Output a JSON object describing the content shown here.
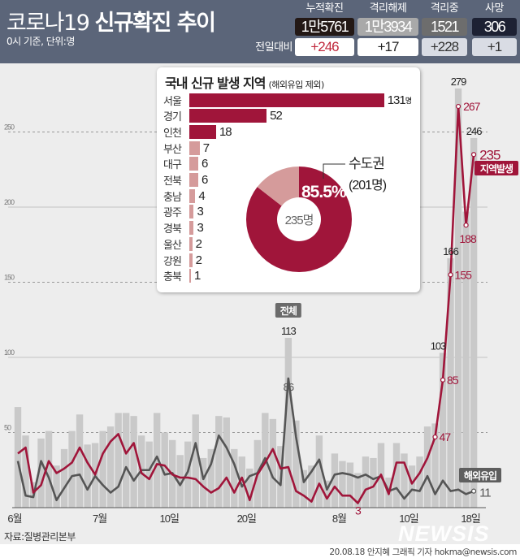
{
  "header": {
    "title_regular": "코로나19",
    "title_bold": "신규확진 추이",
    "subtitle": "0시 기준, 단위:명",
    "compare_label": "전일대비",
    "stats": [
      {
        "label": "누적확진",
        "value": "1만5761",
        "change": "+246",
        "bg": "#231815",
        "change_color": "#c0283c",
        "change_bg": "#ffffff"
      },
      {
        "label": "격리해제",
        "value": "1만3934",
        "change": "+17",
        "bg": "#a9a9a9",
        "change_color": "#222222",
        "change_bg": "#ffffff"
      },
      {
        "label": "격리중",
        "value": "1521",
        "change": "+228",
        "bg": "#6d6d6d",
        "change_color": "#333333",
        "change_bg": "#d9dce4"
      },
      {
        "label": "사망",
        "value": "306",
        "change": "+1",
        "bg": "#1d2133",
        "change_color": "#333333",
        "change_bg": "#d9dce4"
      }
    ]
  },
  "inset": {
    "title": "국내 신규 발생 지역",
    "note": "(해외유입 제외)",
    "unit": "명",
    "regions": [
      {
        "name": "서울",
        "value": 131,
        "metro": true
      },
      {
        "name": "경기",
        "value": 52,
        "metro": true
      },
      {
        "name": "인천",
        "value": 18,
        "metro": true
      },
      {
        "name": "부산",
        "value": 7,
        "metro": false
      },
      {
        "name": "대구",
        "value": 6,
        "metro": false
      },
      {
        "name": "전북",
        "value": 6,
        "metro": false
      },
      {
        "name": "충남",
        "value": 4,
        "metro": false
      },
      {
        "name": "광주",
        "value": 3,
        "metro": false
      },
      {
        "name": "경북",
        "value": 3,
        "metro": false
      },
      {
        "name": "울산",
        "value": 2,
        "metro": false
      },
      {
        "name": "강원",
        "value": 2,
        "metro": false
      },
      {
        "name": "충북",
        "value": 1,
        "metro": false
      }
    ],
    "donut": {
      "percent": 85.5,
      "percent_label": "85.5%",
      "group_label": "수도권",
      "group_count": "(201명)",
      "center_label": "235명",
      "colors": {
        "metro": "#a0153a",
        "other": "#d59b9b"
      }
    }
  },
  "chart_data": {
    "type": "bar+line",
    "x_labels": [
      {
        "index": 0,
        "text": "6월"
      },
      {
        "index": 11,
        "text": "7월"
      },
      {
        "index": 20,
        "text": "10일"
      },
      {
        "index": 30,
        "text": "20일"
      },
      {
        "index": 42,
        "text": "8월"
      },
      {
        "index": 51,
        "text": "10일"
      },
      {
        "index": 59,
        "text": "18일"
      }
    ],
    "ylim": [
      0,
      300
    ],
    "yticks": [
      50,
      100,
      150,
      200,
      250
    ],
    "grid": true,
    "series": [
      {
        "name": "전체",
        "kind": "bar",
        "color": "#c9c9c9",
        "values": [
          67,
          48,
          17,
          46,
          51,
          28,
          39,
          51,
          62,
          42,
          43,
          51,
          54,
          63,
          63,
          61,
          48,
          44,
          63,
          50,
          45,
          35,
          44,
          62,
          33,
          39,
          61,
          60,
          39,
          34,
          26,
          45,
          63,
          59,
          41,
          113,
          58,
          25,
          28,
          48,
          18,
          36,
          31,
          30,
          23,
          34,
          33,
          43,
          20,
          43,
          36,
          28,
          34,
          54,
          56,
          103,
          166,
          279,
          197,
          246
        ]
      },
      {
        "name": "지역발생",
        "kind": "line",
        "color": "#a0153a",
        "values": [
          36,
          40,
          10,
          15,
          31,
          23,
          26,
          30,
          40,
          30,
          22,
          36,
          44,
          49,
          36,
          43,
          23,
          19,
          29,
          28,
          22,
          20,
          20,
          19,
          14,
          10,
          13,
          20,
          10,
          20,
          5,
          22,
          30,
          39,
          26,
          27,
          11,
          8,
          4,
          16,
          6,
          14,
          8,
          8,
          3,
          12,
          14,
          22,
          9,
          30,
          30,
          16,
          23,
          33,
          47,
          85,
          155,
          267,
          188,
          235
        ]
      },
      {
        "name": "해외유입",
        "kind": "line",
        "color": "#555555",
        "values": [
          31,
          8,
          7,
          31,
          20,
          5,
          13,
          21,
          22,
          12,
          21,
          15,
          10,
          14,
          27,
          18,
          25,
          25,
          34,
          22,
          23,
          15,
          24,
          43,
          19,
          29,
          48,
          40,
          29,
          14,
          21,
          23,
          33,
          20,
          15,
          86,
          47,
          17,
          24,
          32,
          12,
          22,
          23,
          22,
          20,
          22,
          19,
          21,
          11,
          13,
          6,
          12,
          11,
          21,
          9,
          18,
          11,
          12,
          9,
          11
        ]
      }
    ],
    "annotations": {
      "total_labels": [
        {
          "index": 35,
          "text": "113"
        },
        {
          "index": 55,
          "text": "103"
        },
        {
          "index": 56,
          "text": "166"
        },
        {
          "index": 57,
          "text": "279"
        },
        {
          "index": 59,
          "text": "246"
        }
      ],
      "local_labels": [
        {
          "index": 44,
          "text": "3"
        },
        {
          "index": 54,
          "text": "47"
        },
        {
          "index": 55,
          "text": "85"
        },
        {
          "index": 56,
          "text": "155"
        },
        {
          "index": 57,
          "text": "267"
        },
        {
          "index": 58,
          "text": "188"
        },
        {
          "index": 59,
          "text": "235"
        }
      ],
      "overseas_labels": [
        {
          "index": 35,
          "text": "86"
        },
        {
          "index": 59,
          "text": "11"
        }
      ],
      "total_tag": "전체",
      "local_tag": "지역발생",
      "overseas_tag": "해외유입"
    }
  },
  "footer": {
    "source": "자료:질병관리본부",
    "logo": "NEWSIS",
    "credit": "20.08.18 안지혜 그래픽 기자 hokma@newsis.com"
  }
}
